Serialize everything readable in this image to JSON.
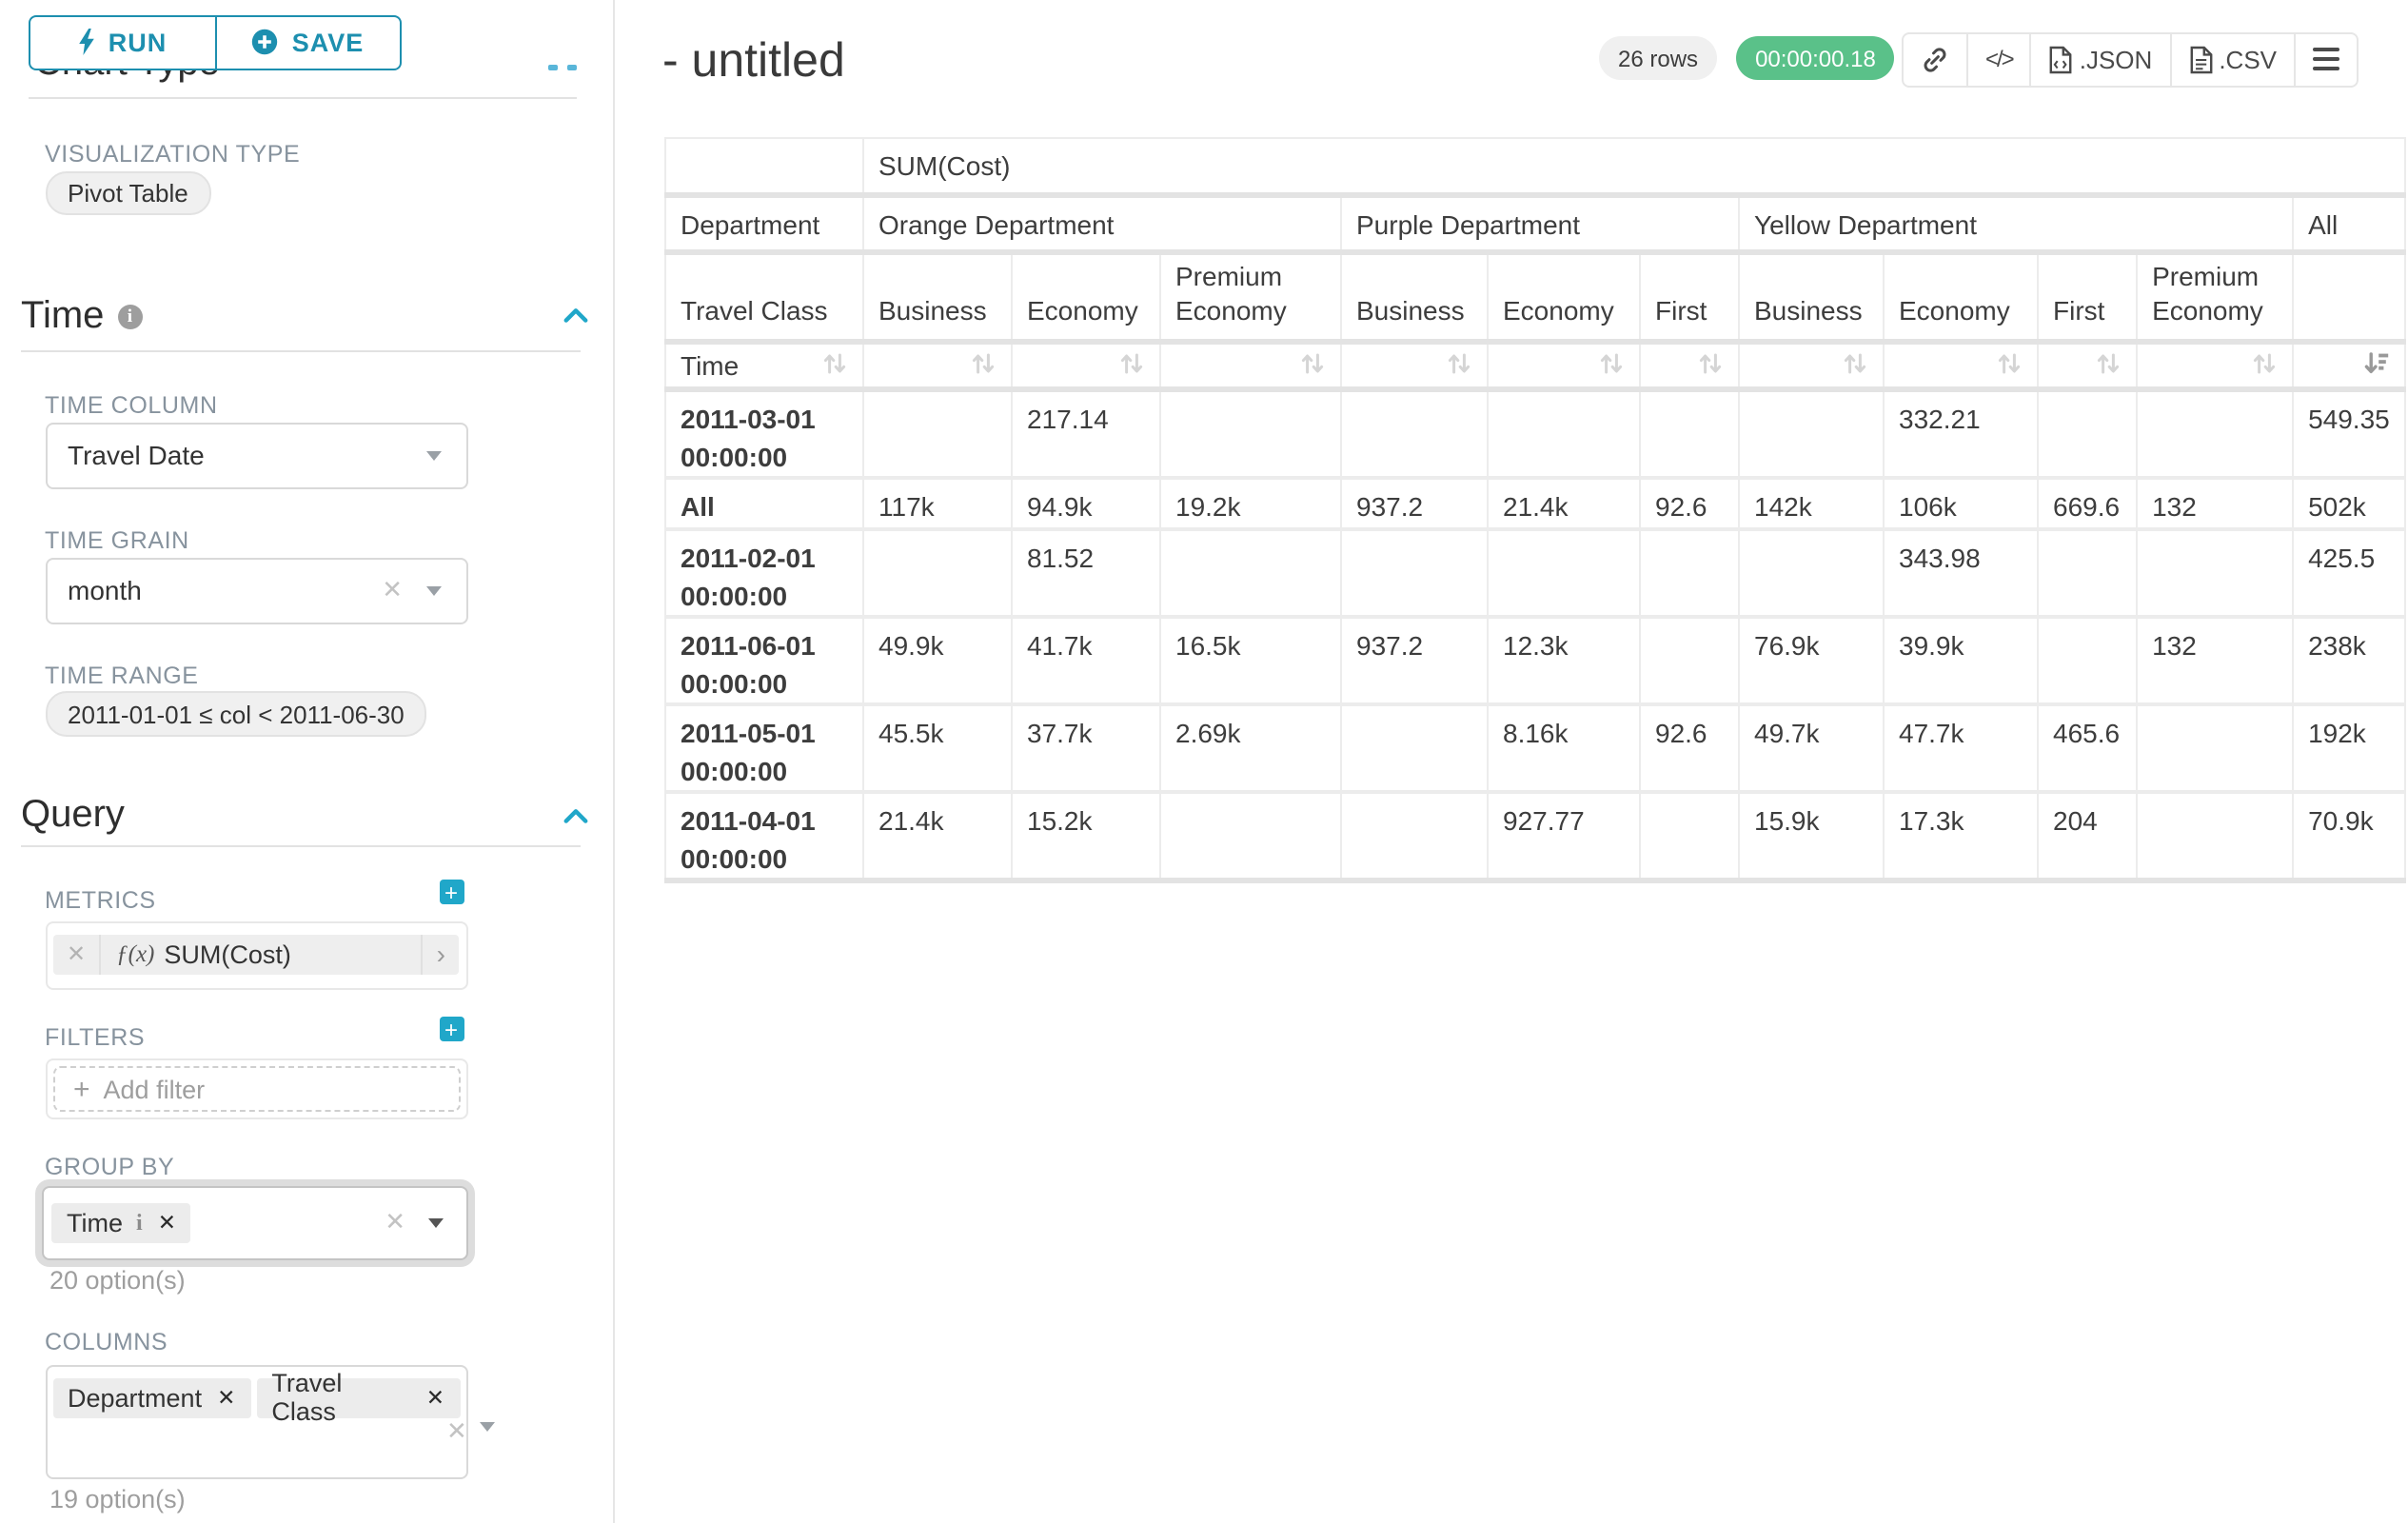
{
  "toolbar": {
    "run_label": "RUN",
    "save_label": "SAVE"
  },
  "sidebar": {
    "chart_type_heading": "Chart Type",
    "viz": {
      "label": "VISUALIZATION TYPE",
      "value": "Pivot Table"
    },
    "time": {
      "heading": "Time",
      "column_label": "TIME COLUMN",
      "column_value": "Travel Date",
      "grain_label": "TIME GRAIN",
      "grain_value": "month",
      "range_label": "TIME RANGE",
      "range_value": "2011-01-01 ≤ col < 2011-06-30"
    },
    "query": {
      "heading": "Query",
      "metrics_label": "METRICS",
      "metric": {
        "fx": "ƒ(x)",
        "label": "SUM(Cost)"
      },
      "filters_label": "FILTERS",
      "add_filter_label": "Add filter",
      "group_by": {
        "label": "GROUP BY",
        "tags": [
          "Time"
        ],
        "options": "20 option(s)"
      },
      "columns": {
        "label": "COLUMNS",
        "tags": [
          "Department",
          "Travel Class"
        ],
        "options": "19 option(s)"
      }
    }
  },
  "header": {
    "title": "- untitled",
    "rows_badge": "26 rows",
    "timer": "00:00:00.18",
    "export_json": ".JSON",
    "export_csv": ".CSV"
  },
  "pivot": {
    "metric": "SUM(Cost)",
    "row_dim_labels": [
      "Department",
      "Travel Class",
      "Time"
    ],
    "all_label": "All",
    "groups": [
      {
        "label": "Orange Department",
        "cols": [
          "Business",
          "Economy",
          "Premium Economy"
        ]
      },
      {
        "label": "Purple Department",
        "cols": [
          "Business",
          "Economy",
          "First"
        ]
      },
      {
        "label": "Yellow Department",
        "cols": [
          "Business",
          "Economy",
          "First",
          "Premium Economy"
        ]
      }
    ],
    "rows": [
      {
        "label": "2011-03-01 00:00:00",
        "values": [
          "",
          "217.14",
          "",
          "",
          "",
          "",
          "",
          "332.21",
          "",
          "",
          "549.35"
        ]
      },
      {
        "label": "All",
        "values": [
          "117k",
          "94.9k",
          "19.2k",
          "937.2",
          "21.4k",
          "92.6",
          "142k",
          "106k",
          "669.6",
          "132",
          "502k"
        ]
      },
      {
        "label": "2011-02-01 00:00:00",
        "values": [
          "",
          "81.52",
          "",
          "",
          "",
          "",
          "",
          "343.98",
          "",
          "",
          "425.5"
        ]
      },
      {
        "label": "2011-06-01 00:00:00",
        "values": [
          "49.9k",
          "41.7k",
          "16.5k",
          "937.2",
          "12.3k",
          "",
          "76.9k",
          "39.9k",
          "",
          "132",
          "238k"
        ]
      },
      {
        "label": "2011-05-01 00:00:00",
        "values": [
          "45.5k",
          "37.7k",
          "2.69k",
          "",
          "8.16k",
          "92.6",
          "49.7k",
          "47.7k",
          "465.6",
          "",
          "192k"
        ]
      },
      {
        "label": "2011-04-01 00:00:00",
        "values": [
          "21.4k",
          "15.2k",
          "",
          "",
          "927.77",
          "",
          "15.9k",
          "17.3k",
          "204",
          "",
          "70.9k"
        ]
      }
    ]
  }
}
